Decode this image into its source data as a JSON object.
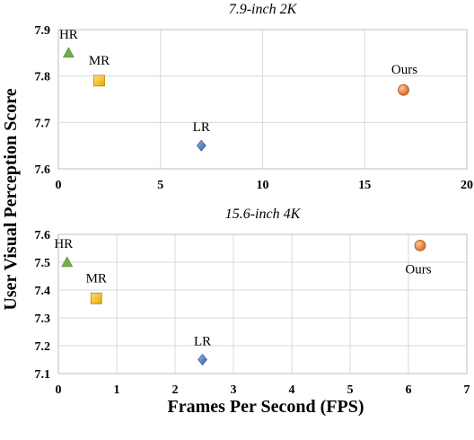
{
  "chart_data": [
    {
      "type": "scatter",
      "title": "7.9-inch 2K",
      "xlim": [
        0,
        20
      ],
      "ylim": [
        7.6,
        7.9
      ],
      "xticks": [
        0,
        5,
        10,
        15,
        20
      ],
      "yticks": [
        7.6,
        7.7,
        7.8,
        7.9
      ],
      "grid": true,
      "points": [
        {
          "label": "HR",
          "x": 0.5,
          "y": 7.85,
          "marker": "triangle",
          "color": "#70AD47"
        },
        {
          "label": "MR",
          "x": 2.0,
          "y": 7.79,
          "marker": "square",
          "color": "#FFC000"
        },
        {
          "label": "LR",
          "x": 7.0,
          "y": 7.65,
          "marker": "diamond",
          "color": "#4472C4"
        },
        {
          "label": "Ours",
          "x": 16.9,
          "y": 7.77,
          "marker": "circle",
          "color": "#ED7D31"
        }
      ]
    },
    {
      "type": "scatter",
      "title": "15.6-inch 4K",
      "xlim": [
        0,
        7
      ],
      "ylim": [
        7.1,
        7.6
      ],
      "xticks": [
        0,
        1,
        2,
        3,
        4,
        5,
        6,
        7
      ],
      "yticks": [
        7.1,
        7.2,
        7.3,
        7.4,
        7.5,
        7.6
      ],
      "grid": true,
      "points": [
        {
          "label": "HR",
          "x": 0.15,
          "y": 7.5,
          "marker": "triangle",
          "color": "#70AD47"
        },
        {
          "label": "MR",
          "x": 0.65,
          "y": 7.37,
          "marker": "square",
          "color": "#FFC000"
        },
        {
          "label": "LR",
          "x": 2.47,
          "y": 7.15,
          "marker": "diamond",
          "color": "#4472C4"
        },
        {
          "label": "Ours",
          "x": 6.2,
          "y": 7.56,
          "marker": "circle",
          "color": "#ED7D31"
        }
      ]
    }
  ],
  "shared": {
    "ylabel": "User Visual Perception Score",
    "xlabel": "Frames Per Second (FPS)"
  }
}
